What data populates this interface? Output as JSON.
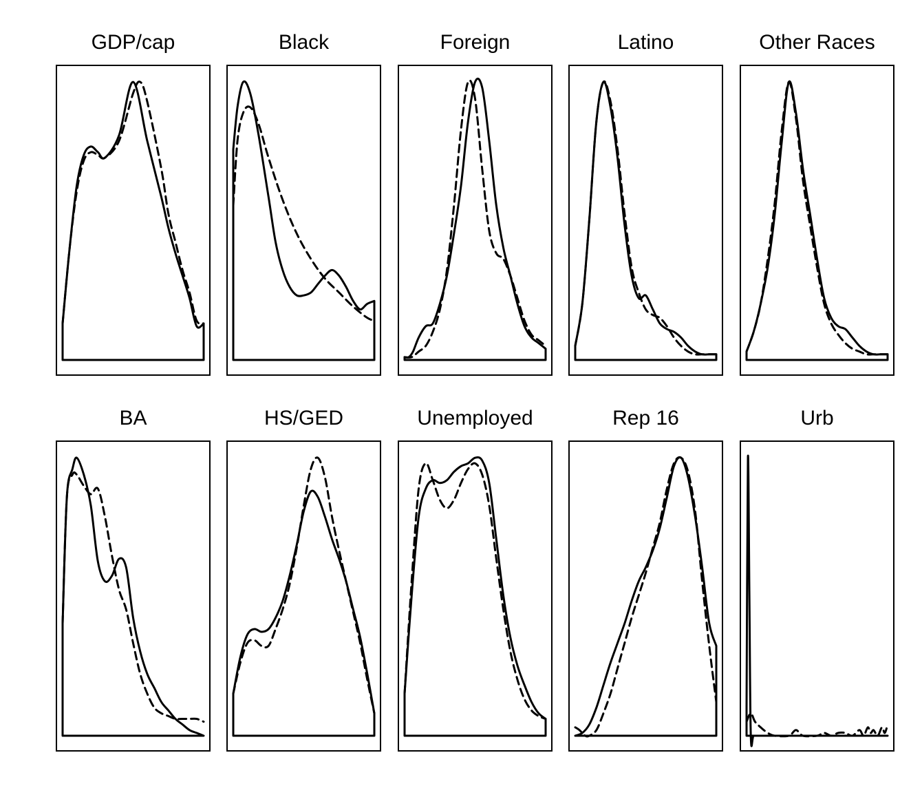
{
  "chart_data": [
    {
      "type": "line",
      "title": "GDP/cap",
      "xlim": [
        0,
        1
      ],
      "ylim": [
        0,
        1
      ],
      "series": [
        {
          "style": "solid",
          "x": [
            0,
            0.05,
            0.1,
            0.15,
            0.2,
            0.25,
            0.3,
            0.4,
            0.5,
            0.6,
            0.7,
            0.75,
            0.8,
            0.85,
            0.9,
            0.95,
            1.0
          ],
          "y": [
            0.13,
            0.4,
            0.62,
            0.73,
            0.76,
            0.74,
            0.72,
            0.8,
            0.99,
            0.78,
            0.58,
            0.47,
            0.38,
            0.3,
            0.22,
            0.12,
            0.13
          ]
        },
        {
          "style": "dashed",
          "x": [
            0,
            0.05,
            0.1,
            0.15,
            0.2,
            0.25,
            0.3,
            0.4,
            0.5,
            0.55,
            0.6,
            0.7,
            0.75,
            0.8,
            0.85,
            0.9,
            0.95,
            1.0
          ],
          "y": [
            0.13,
            0.4,
            0.6,
            0.71,
            0.74,
            0.73,
            0.72,
            0.78,
            0.95,
            0.99,
            0.92,
            0.68,
            0.52,
            0.42,
            0.32,
            0.24,
            0.14,
            0.13
          ]
        }
      ]
    },
    {
      "type": "line",
      "title": "Black",
      "xlim": [
        0,
        1
      ],
      "ylim": [
        0,
        1
      ],
      "series": [
        {
          "style": "solid",
          "x": [
            0,
            0.03,
            0.07,
            0.12,
            0.18,
            0.25,
            0.3,
            0.35,
            0.4,
            0.45,
            0.5,
            0.55,
            0.6,
            0.65,
            0.7,
            0.75,
            0.8,
            0.85,
            0.9,
            0.95,
            1.0
          ],
          "y": [
            0.75,
            0.9,
            0.99,
            0.95,
            0.8,
            0.58,
            0.42,
            0.32,
            0.26,
            0.23,
            0.23,
            0.24,
            0.27,
            0.3,
            0.32,
            0.3,
            0.26,
            0.21,
            0.18,
            0.2,
            0.21
          ]
        },
        {
          "style": "dashed",
          "x": [
            0,
            0.03,
            0.07,
            0.12,
            0.18,
            0.25,
            0.35,
            0.45,
            0.55,
            0.65,
            0.75,
            0.85,
            0.95,
            1.0
          ],
          "y": [
            0.55,
            0.78,
            0.88,
            0.9,
            0.84,
            0.72,
            0.57,
            0.45,
            0.36,
            0.29,
            0.24,
            0.19,
            0.15,
            0.14
          ]
        }
      ]
    },
    {
      "type": "line",
      "title": "Foreign",
      "xlim": [
        0,
        1
      ],
      "ylim": [
        0,
        1
      ],
      "series": [
        {
          "style": "solid",
          "x": [
            0,
            0.03,
            0.06,
            0.1,
            0.15,
            0.2,
            0.25,
            0.3,
            0.35,
            0.4,
            0.45,
            0.5,
            0.55,
            0.6,
            0.65,
            0.7,
            0.75,
            0.8,
            0.85,
            0.9,
            0.95,
            1.0
          ],
          "y": [
            0.01,
            0.01,
            0.03,
            0.08,
            0.12,
            0.13,
            0.2,
            0.3,
            0.45,
            0.62,
            0.85,
            0.99,
            0.97,
            0.78,
            0.55,
            0.4,
            0.3,
            0.2,
            0.12,
            0.08,
            0.06,
            0.04
          ]
        },
        {
          "style": "dashed",
          "x": [
            0,
            0.05,
            0.1,
            0.15,
            0.2,
            0.25,
            0.3,
            0.35,
            0.4,
            0.45,
            0.5,
            0.55,
            0.6,
            0.65,
            0.7,
            0.75,
            0.8,
            0.85,
            0.9,
            0.95,
            1.0
          ],
          "y": [
            0.01,
            0.01,
            0.03,
            0.05,
            0.1,
            0.18,
            0.32,
            0.55,
            0.82,
            0.99,
            0.93,
            0.68,
            0.46,
            0.38,
            0.36,
            0.3,
            0.22,
            0.14,
            0.09,
            0.07,
            0.05
          ]
        }
      ]
    },
    {
      "type": "line",
      "title": "Latino",
      "xlim": [
        0,
        1
      ],
      "ylim": [
        0,
        1
      ],
      "series": [
        {
          "style": "solid",
          "x": [
            0,
            0.05,
            0.1,
            0.15,
            0.2,
            0.25,
            0.3,
            0.35,
            0.4,
            0.45,
            0.5,
            0.55,
            0.6,
            0.65,
            0.7,
            0.75,
            0.8,
            0.85,
            0.9,
            0.95,
            1.0
          ],
          "y": [
            0.05,
            0.2,
            0.5,
            0.85,
            0.99,
            0.9,
            0.72,
            0.48,
            0.3,
            0.22,
            0.23,
            0.18,
            0.13,
            0.11,
            0.1,
            0.08,
            0.05,
            0.03,
            0.02,
            0.02,
            0.02
          ]
        },
        {
          "style": "dashed",
          "x": [
            0,
            0.05,
            0.1,
            0.15,
            0.2,
            0.25,
            0.3,
            0.35,
            0.4,
            0.45,
            0.5,
            0.55,
            0.6,
            0.65,
            0.7,
            0.75,
            0.8,
            0.85,
            0.9,
            0.95,
            1.0
          ],
          "y": [
            0.05,
            0.2,
            0.5,
            0.85,
            0.99,
            0.92,
            0.75,
            0.52,
            0.33,
            0.24,
            0.18,
            0.16,
            0.15,
            0.12,
            0.08,
            0.05,
            0.03,
            0.02,
            0.02,
            0.02,
            0.02
          ]
        }
      ]
    },
    {
      "type": "line",
      "title": "Other Races",
      "xlim": [
        0,
        1
      ],
      "ylim": [
        0,
        1
      ],
      "series": [
        {
          "style": "solid",
          "x": [
            0,
            0.05,
            0.1,
            0.15,
            0.2,
            0.25,
            0.3,
            0.35,
            0.4,
            0.45,
            0.5,
            0.55,
            0.6,
            0.65,
            0.7,
            0.75,
            0.8,
            0.85,
            0.9,
            0.95,
            1.0
          ],
          "y": [
            0.03,
            0.1,
            0.2,
            0.33,
            0.52,
            0.78,
            0.99,
            0.88,
            0.68,
            0.52,
            0.36,
            0.22,
            0.15,
            0.12,
            0.11,
            0.08,
            0.05,
            0.03,
            0.02,
            0.02,
            0.02
          ]
        },
        {
          "style": "dashed",
          "x": [
            0,
            0.05,
            0.1,
            0.15,
            0.2,
            0.25,
            0.3,
            0.35,
            0.4,
            0.45,
            0.5,
            0.55,
            0.6,
            0.65,
            0.7,
            0.75,
            0.8,
            0.85,
            0.9,
            0.95,
            1.0
          ],
          "y": [
            0.03,
            0.1,
            0.2,
            0.36,
            0.56,
            0.82,
            0.99,
            0.86,
            0.64,
            0.48,
            0.33,
            0.2,
            0.13,
            0.09,
            0.06,
            0.04,
            0.03,
            0.02,
            0.02,
            0.02,
            0.02
          ]
        }
      ]
    },
    {
      "type": "line",
      "title": "BA",
      "xlim": [
        0,
        1
      ],
      "ylim": [
        0,
        1
      ],
      "series": [
        {
          "style": "solid",
          "x": [
            0,
            0.03,
            0.07,
            0.1,
            0.15,
            0.2,
            0.25,
            0.3,
            0.35,
            0.4,
            0.45,
            0.5,
            0.55,
            0.6,
            0.65,
            0.7,
            0.75,
            0.8,
            0.85,
            0.9,
            0.95,
            1.0
          ],
          "y": [
            0.4,
            0.85,
            0.95,
            0.99,
            0.93,
            0.82,
            0.62,
            0.55,
            0.57,
            0.63,
            0.6,
            0.42,
            0.3,
            0.22,
            0.17,
            0.12,
            0.09,
            0.06,
            0.04,
            0.02,
            0.01,
            0.0
          ]
        },
        {
          "style": "dashed",
          "x": [
            0,
            0.03,
            0.07,
            0.1,
            0.15,
            0.2,
            0.25,
            0.3,
            0.35,
            0.4,
            0.45,
            0.5,
            0.55,
            0.6,
            0.65,
            0.7,
            0.75,
            0.8,
            0.85,
            0.9,
            0.95,
            1.0
          ],
          "y": [
            0.4,
            0.85,
            0.93,
            0.93,
            0.89,
            0.86,
            0.88,
            0.78,
            0.64,
            0.52,
            0.45,
            0.33,
            0.22,
            0.15,
            0.1,
            0.08,
            0.07,
            0.06,
            0.06,
            0.06,
            0.06,
            0.05
          ]
        }
      ]
    },
    {
      "type": "line",
      "title": "HS/GED",
      "xlim": [
        0,
        1
      ],
      "ylim": [
        0,
        1
      ],
      "series": [
        {
          "style": "solid",
          "x": [
            0,
            0.05,
            0.1,
            0.15,
            0.2,
            0.25,
            0.3,
            0.35,
            0.4,
            0.45,
            0.5,
            0.55,
            0.6,
            0.65,
            0.7,
            0.75,
            0.8,
            0.85,
            0.9,
            0.95,
            1.0
          ],
          "y": [
            0.15,
            0.28,
            0.36,
            0.38,
            0.37,
            0.38,
            0.42,
            0.48,
            0.57,
            0.68,
            0.8,
            0.87,
            0.85,
            0.78,
            0.7,
            0.63,
            0.55,
            0.45,
            0.35,
            0.22,
            0.08
          ]
        },
        {
          "style": "dashed",
          "x": [
            0,
            0.05,
            0.1,
            0.15,
            0.2,
            0.25,
            0.3,
            0.35,
            0.4,
            0.45,
            0.5,
            0.55,
            0.6,
            0.65,
            0.7,
            0.75,
            0.8,
            0.85,
            0.9,
            0.95,
            1.0
          ],
          "y": [
            0.15,
            0.26,
            0.33,
            0.34,
            0.32,
            0.32,
            0.38,
            0.45,
            0.54,
            0.67,
            0.82,
            0.95,
            0.99,
            0.92,
            0.78,
            0.66,
            0.55,
            0.44,
            0.33,
            0.2,
            0.08
          ]
        }
      ]
    },
    {
      "type": "line",
      "title": "Unemployed",
      "xlim": [
        0,
        1
      ],
      "ylim": [
        0,
        1
      ],
      "series": [
        {
          "style": "solid",
          "x": [
            0,
            0.05,
            0.1,
            0.15,
            0.2,
            0.25,
            0.3,
            0.35,
            0.4,
            0.45,
            0.5,
            0.55,
            0.6,
            0.65,
            0.7,
            0.75,
            0.8,
            0.85,
            0.9,
            0.95,
            1.0
          ],
          "y": [
            0.15,
            0.5,
            0.78,
            0.88,
            0.91,
            0.9,
            0.91,
            0.94,
            0.96,
            0.97,
            0.99,
            0.98,
            0.9,
            0.7,
            0.5,
            0.35,
            0.25,
            0.18,
            0.12,
            0.08,
            0.06
          ]
        },
        {
          "style": "dashed",
          "x": [
            0,
            0.05,
            0.1,
            0.15,
            0.2,
            0.25,
            0.3,
            0.35,
            0.4,
            0.45,
            0.5,
            0.55,
            0.6,
            0.65,
            0.7,
            0.75,
            0.8,
            0.85,
            0.9,
            0.95,
            1.0
          ],
          "y": [
            0.15,
            0.55,
            0.88,
            0.97,
            0.91,
            0.84,
            0.81,
            0.84,
            0.9,
            0.95,
            0.97,
            0.93,
            0.82,
            0.63,
            0.45,
            0.3,
            0.2,
            0.13,
            0.09,
            0.07,
            0.06
          ]
        }
      ]
    },
    {
      "type": "line",
      "title": "Rep 16",
      "xlim": [
        0,
        1
      ],
      "ylim": [
        0,
        1
      ],
      "series": [
        {
          "style": "solid",
          "x": [
            0,
            0.05,
            0.1,
            0.15,
            0.2,
            0.25,
            0.3,
            0.35,
            0.4,
            0.45,
            0.5,
            0.55,
            0.6,
            0.65,
            0.7,
            0.75,
            0.8,
            0.85,
            0.9,
            0.95,
            1.0
          ],
          "y": [
            0.0,
            0.01,
            0.04,
            0.1,
            0.18,
            0.26,
            0.33,
            0.4,
            0.48,
            0.55,
            0.6,
            0.66,
            0.74,
            0.85,
            0.96,
            0.99,
            0.92,
            0.78,
            0.6,
            0.4,
            0.32
          ]
        },
        {
          "style": "dashed",
          "x": [
            0,
            0.03,
            0.07,
            0.1,
            0.15,
            0.2,
            0.25,
            0.3,
            0.35,
            0.4,
            0.45,
            0.5,
            0.55,
            0.6,
            0.65,
            0.7,
            0.75,
            0.8,
            0.85,
            0.9,
            0.95,
            1.0
          ],
          "y": [
            0.03,
            0.02,
            0.0,
            0.0,
            0.02,
            0.08,
            0.15,
            0.24,
            0.33,
            0.42,
            0.5,
            0.58,
            0.67,
            0.76,
            0.88,
            0.97,
            0.99,
            0.94,
            0.8,
            0.55,
            0.32,
            0.12
          ]
        }
      ]
    },
    {
      "type": "line",
      "title": "Urb",
      "xlim": [
        0,
        1
      ],
      "ylim": [
        0,
        1
      ],
      "series": [
        {
          "style": "solid",
          "x": [
            0,
            0.01,
            0.02,
            0.03,
            0.05,
            0.1,
            0.2,
            0.3,
            0.4,
            0.5,
            0.6,
            0.7,
            0.8,
            0.9,
            1.0
          ],
          "y": [
            0.1,
            0.99,
            0.5,
            0.0,
            0.0,
            0.0,
            0.0,
            0.0,
            0.0,
            0.0,
            0.0,
            0.0,
            0.0,
            0.0,
            0.0
          ]
        },
        {
          "style": "dashed",
          "x": [
            0,
            0.03,
            0.06,
            0.1,
            0.15,
            0.2,
            0.3,
            0.35,
            0.4,
            0.5,
            0.55,
            0.6,
            0.65,
            0.7,
            0.75,
            0.8,
            0.83,
            0.86,
            0.88,
            0.9,
            0.93,
            0.96,
            0.98,
            1.0
          ],
          "y": [
            0.05,
            0.08,
            0.05,
            0.03,
            0.01,
            0.0,
            0.0,
            0.02,
            0.0,
            0.0,
            0.01,
            0.0,
            0.01,
            0.01,
            0.0,
            0.02,
            0.0,
            0.03,
            0.01,
            0.02,
            0.0,
            0.03,
            0.01,
            0.04
          ]
        }
      ]
    }
  ]
}
